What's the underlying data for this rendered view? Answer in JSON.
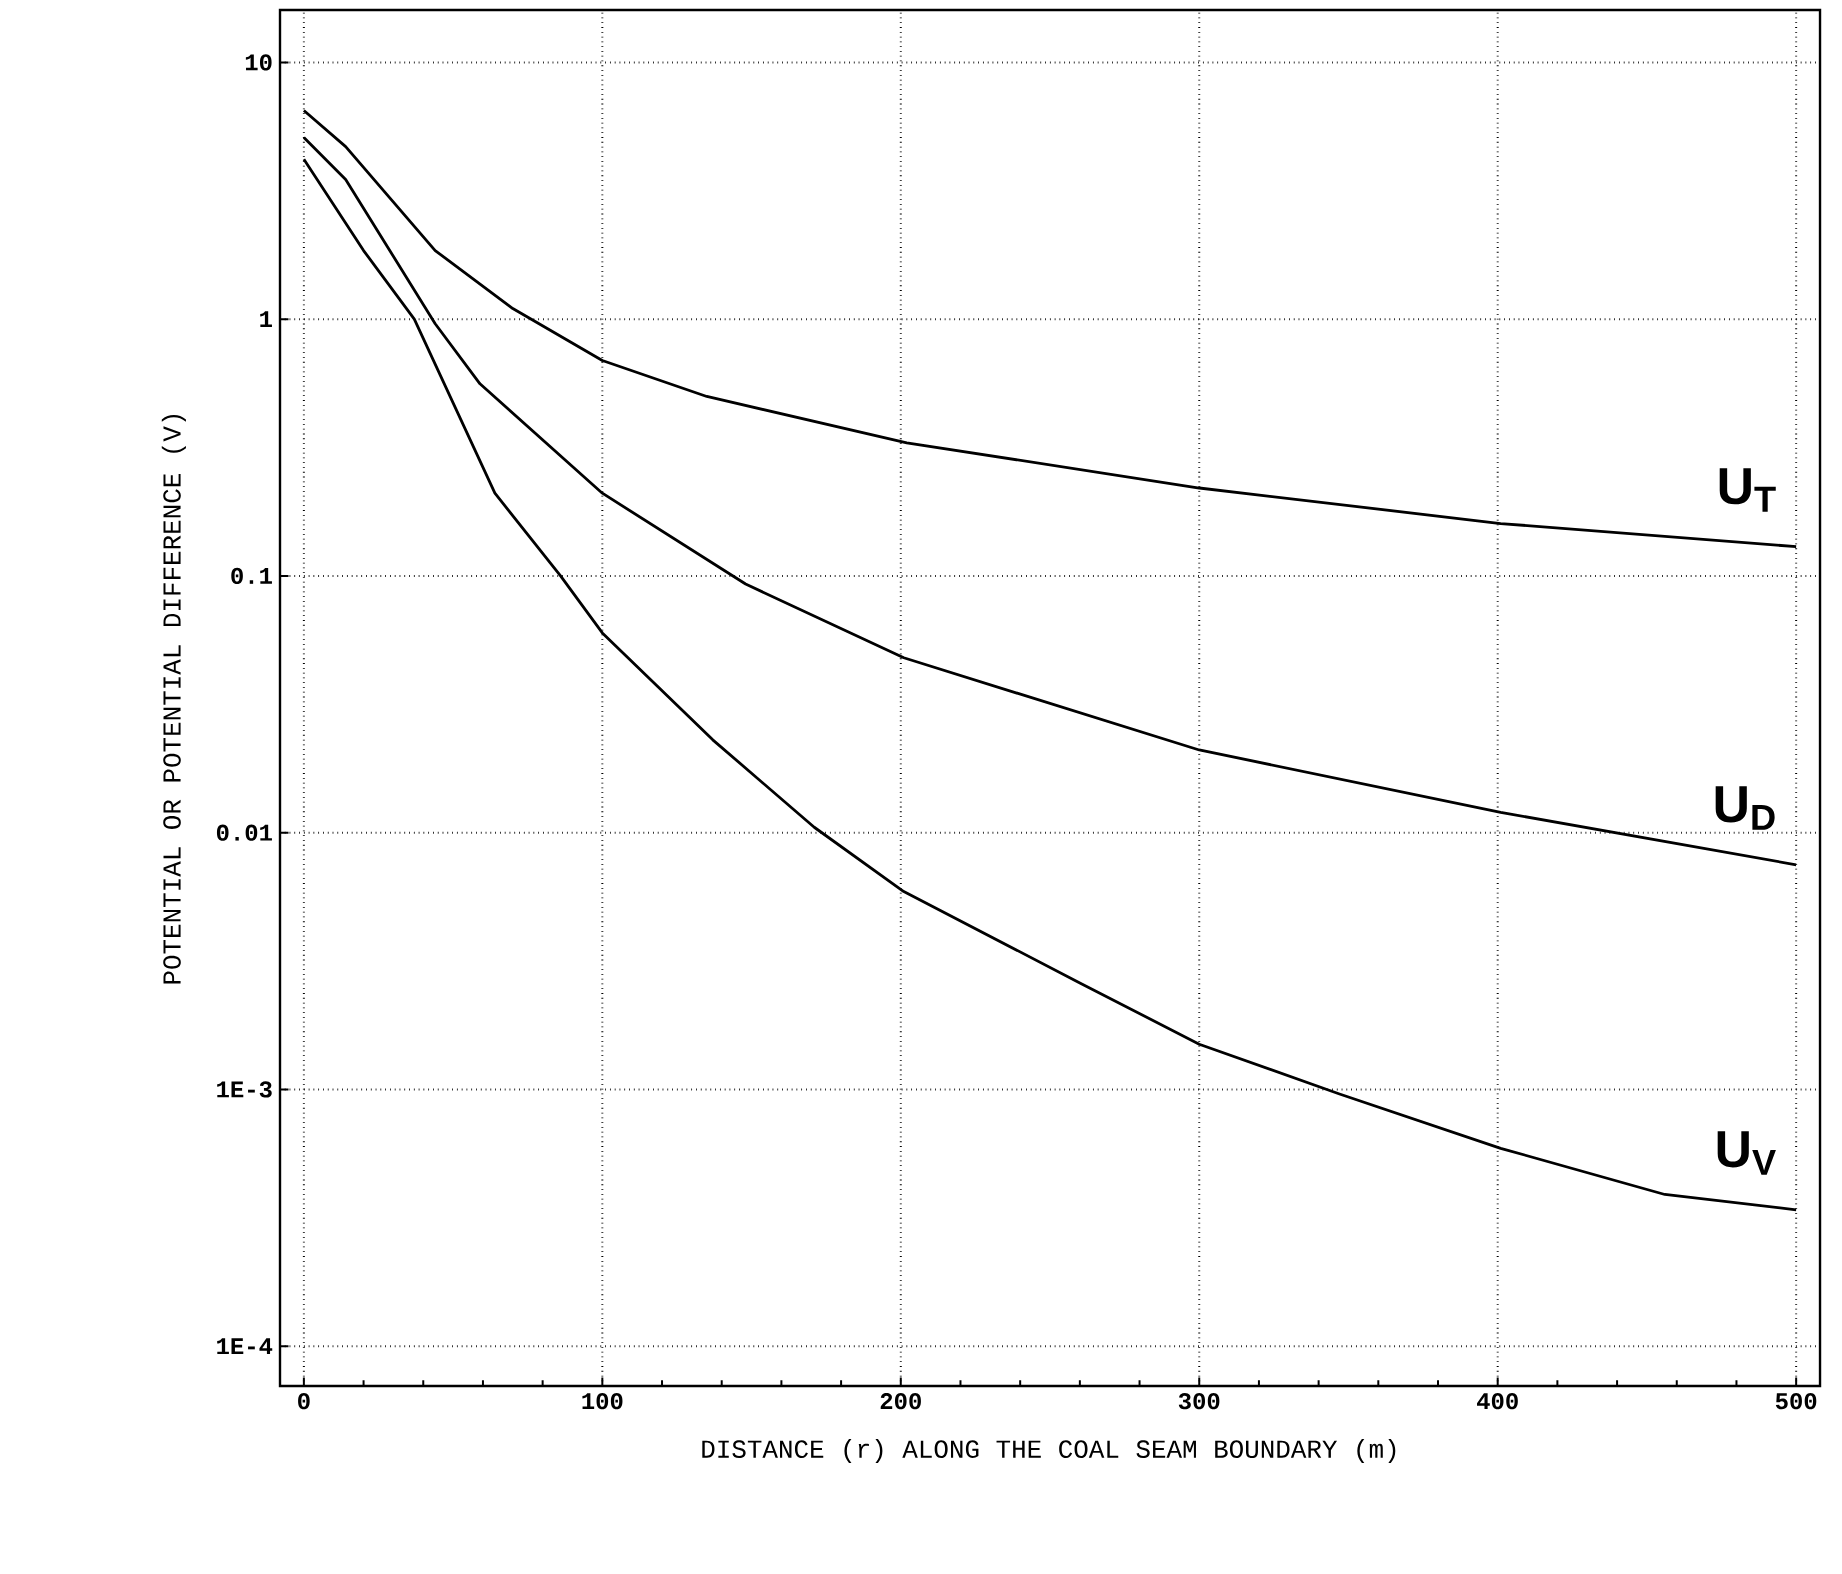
{
  "chart_data": {
    "type": "line",
    "xlabel": "DISTANCE (r) ALONG THE COAL SEAM BOUNDARY (m)",
    "ylabel": "POTENTIAL OR POTENTIAL DIFFERENCE (V)",
    "log": "y",
    "grid": true,
    "line_style": "solid",
    "marker": "none",
    "xlim": [
      -8,
      508
    ],
    "xticks": [
      0,
      100,
      200,
      300,
      400,
      500
    ],
    "ylim": [
      7e-05,
      16
    ],
    "yticks": [
      {
        "value": 10,
        "label": "10"
      },
      {
        "value": 1,
        "label": "1"
      },
      {
        "value": 0.1,
        "label": "0.1"
      },
      {
        "value": 0.01,
        "label": "0.01"
      },
      {
        "value": 0.001,
        "label": "1E-3"
      },
      {
        "value": 0.0001,
        "label": "1E-4"
      }
    ],
    "series": [
      {
        "name": "U$_{T}$",
        "color": "#000000",
        "x": [
          0,
          14,
          44,
          70,
          100,
          135,
          202,
          300,
          401,
          500
        ],
        "values": [
          6.5,
          4.7,
          1.85,
          1.1,
          0.69,
          0.5,
          0.33,
          0.22,
          0.16,
          0.13
        ]
      },
      {
        "name": "U$_{D}$",
        "color": "#000000",
        "x": [
          0,
          14,
          44,
          59,
          100,
          148,
          201,
          300,
          401,
          500
        ],
        "values": [
          5.1,
          3.5,
          0.96,
          0.56,
          0.21,
          0.093,
          0.048,
          0.021,
          0.012,
          0.0075
        ]
      },
      {
        "name": "U$_{V}$",
        "color": "#000000",
        "x": [
          0,
          20,
          37,
          64,
          86,
          100,
          137,
          171,
          201,
          260,
          300,
          347,
          401,
          456,
          500
        ],
        "values": [
          4.2,
          1.85,
          1.0,
          0.21,
          0.1,
          0.06,
          0.023,
          0.0105,
          0.0059,
          0.0026,
          0.0015,
          0.00096,
          0.00059,
          0.00039,
          0.00034
        ]
      }
    ]
  }
}
